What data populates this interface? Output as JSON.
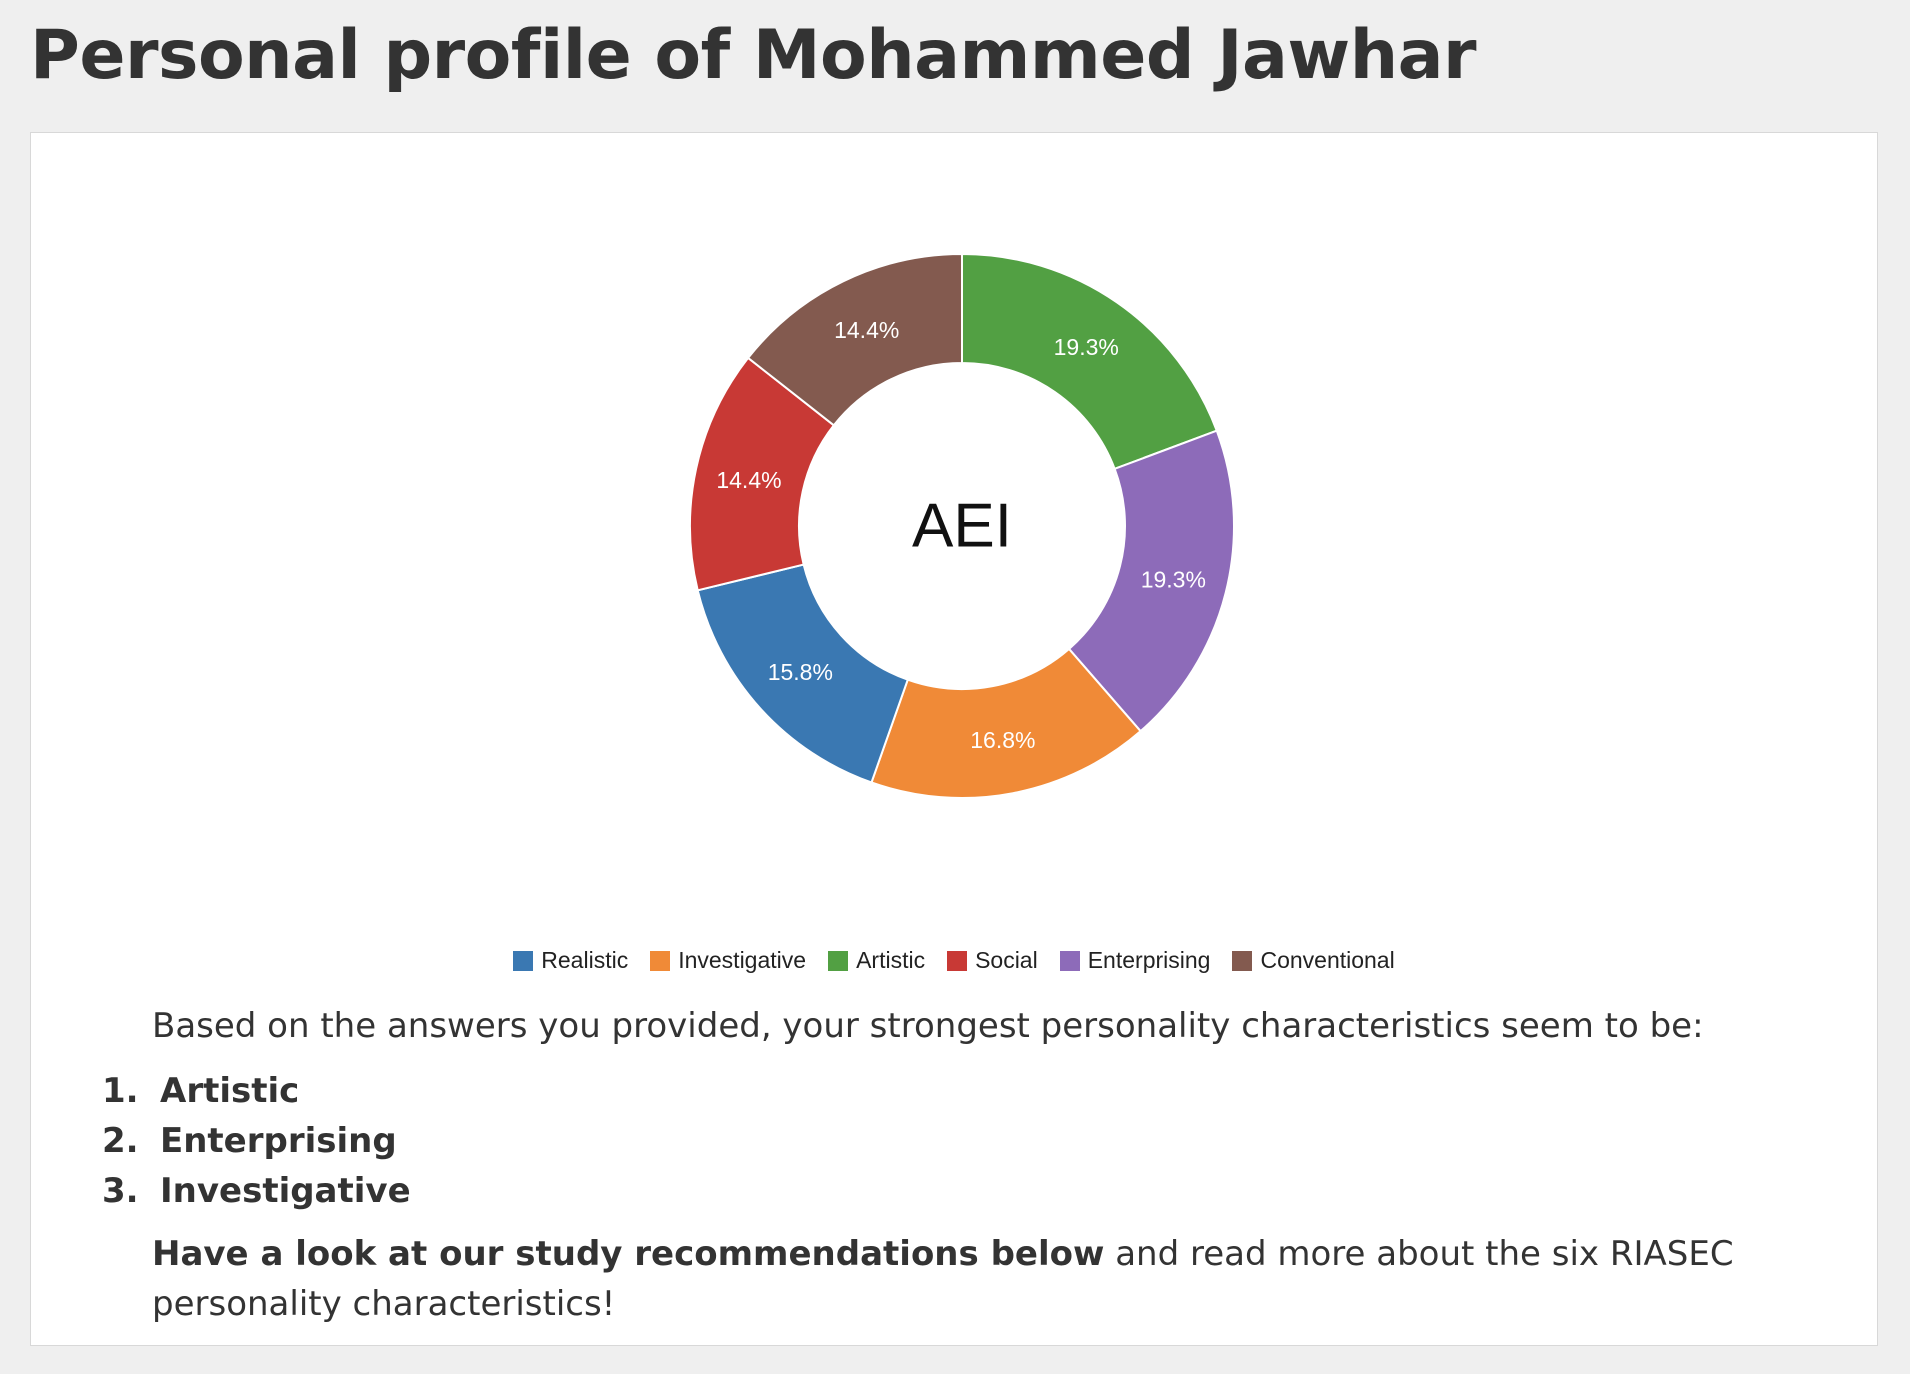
{
  "page": {
    "title": "Personal profile of Mohammed Jawhar"
  },
  "chart_data": {
    "type": "pie",
    "style": "donut",
    "center_label": "AEI",
    "categories": [
      "Realistic",
      "Investigative",
      "Artistic",
      "Social",
      "Enterprising",
      "Conventional"
    ],
    "values": [
      15.8,
      16.8,
      19.3,
      14.4,
      19.3,
      14.4
    ],
    "value_labels": [
      "15.8%",
      "16.8%",
      "19.3%",
      "14.4%",
      "19.3%",
      "14.4%"
    ],
    "colors": [
      "#3a78b2",
      "#f08a37",
      "#52a043",
      "#c83935",
      "#8d6bb9",
      "#835a4f"
    ],
    "draw_order": [
      "Artistic",
      "Enterprising",
      "Investigative",
      "Realistic",
      "Social",
      "Conventional"
    ],
    "legend": {
      "placement": "bottom",
      "entries": [
        "Realistic",
        "Investigative",
        "Artistic",
        "Social",
        "Enterprising",
        "Conventional"
      ]
    }
  },
  "results": {
    "intro": "Based on the answers you provided, your strongest personality characteristics seem to be:",
    "top_characteristics": [
      {
        "number": "1.",
        "label": "Artistic"
      },
      {
        "number": "2.",
        "label": "Enterprising"
      },
      {
        "number": "3.",
        "label": "Investigative"
      }
    ],
    "outro_bold": "Have a look at our study recommendations below",
    "outro_rest": " and read more about the six RIASEC personality characteristics!"
  }
}
